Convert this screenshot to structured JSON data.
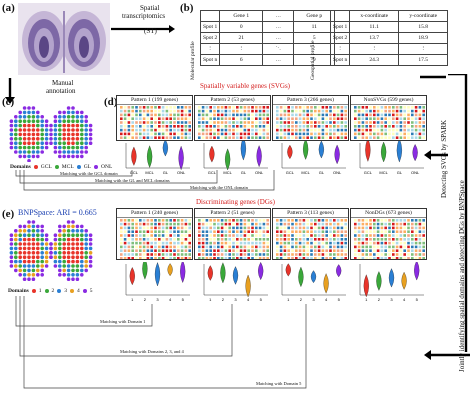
{
  "panels": {
    "a": "(a)",
    "b": "(b)",
    "c": "(c)",
    "d": "(d)",
    "e": "(e)"
  },
  "arrows": {
    "st_line1": "Spatial",
    "st_line2": "transcriptomics",
    "st_line3": "(ST)",
    "manual_line1": "Manual",
    "manual_line2": "annotation"
  },
  "tables": {
    "molecular_label": "Molecular profile",
    "geospatial_label": "Geospatial profile",
    "molecular_headers": [
      "",
      "Gene 1",
      "…",
      "Gene p"
    ],
    "molecular_rows": [
      [
        "Spot 1",
        "0",
        "…",
        "11"
      ],
      [
        "Spot 2",
        "21",
        "…",
        "5"
      ],
      [
        "⋮",
        "⋮",
        "⋱",
        "⋮"
      ],
      [
        "Spot n",
        "6",
        "…",
        "9"
      ]
    ],
    "geo_headers": [
      "",
      "x-coordinate",
      "y-coordinate"
    ],
    "geo_rows": [
      [
        "Spot 1",
        "11.1",
        "15.8"
      ],
      [
        "Spot 2",
        "13.7",
        "18.9"
      ],
      [
        "⋮",
        "⋮",
        "⋮"
      ],
      [
        "Spot n",
        "24.3",
        "17.5"
      ]
    ]
  },
  "side": {
    "detect": "Detecting SVGs by SPARK",
    "joint": "Jointly identifying spatial domains and detecting DGs by BNPSpace"
  },
  "panel_c": {
    "domains_label": "Domains",
    "legend": [
      {
        "label": "GCL",
        "color": "#e8342a"
      },
      {
        "label": "MCL",
        "color": "#3aa83a"
      },
      {
        "label": "GL",
        "color": "#2a7fd4"
      },
      {
        "label": "ONL",
        "color": "#8a2be2"
      }
    ],
    "matching": [
      "Matching with the GCL domain",
      "Matching with the GL and MCL domains",
      "Matching with the ONL domain"
    ]
  },
  "panel_d": {
    "title": "Spatially variable genes (SVGs)",
    "patterns": [
      "Pattern 1 (199 genes)",
      "Pattern 2 (53 genes)",
      "Pattern 3 (266 genes)",
      "NonSVGs (599 genes)"
    ],
    "xticks": [
      "GCL",
      "MCL",
      "GL",
      "ONL"
    ],
    "yticks": [
      "1.00",
      "0.75",
      "0.50",
      "0.25",
      "0.00"
    ],
    "violin_colors": [
      "#e8342a",
      "#3aa83a",
      "#2a7fd4",
      "#8a2be2"
    ]
  },
  "panel_e": {
    "title": "Discriminating genes (DGs)",
    "ari": "BNPSpace: ARI = 0.665",
    "domains_label": "Domains",
    "legend": [
      {
        "label": "1",
        "color": "#e8342a"
      },
      {
        "label": "2",
        "color": "#3aa83a"
      },
      {
        "label": "3",
        "color": "#2a7fd4"
      },
      {
        "label": "4",
        "color": "#e8a020"
      },
      {
        "label": "5",
        "color": "#8a2be2"
      }
    ],
    "patterns": [
      "Pattern 1 (240 genes)",
      "Pattern 2 (51 genes)",
      "Pattern 3 (113 genes)",
      "NonDGs (673 genes)"
    ],
    "xticks": [
      "1",
      "2",
      "3",
      "4",
      "5"
    ],
    "yticks": [
      "1.00",
      "0.75",
      "0.50",
      "0.25",
      "0.00"
    ],
    "violin_colors": [
      "#e8342a",
      "#3aa83a",
      "#2a7fd4",
      "#e8a020",
      "#8a2be2"
    ],
    "matching": [
      "Matching with Domain 1",
      "Matching with Domains 2, 3, and 4",
      "Matching with Domain 5"
    ]
  }
}
